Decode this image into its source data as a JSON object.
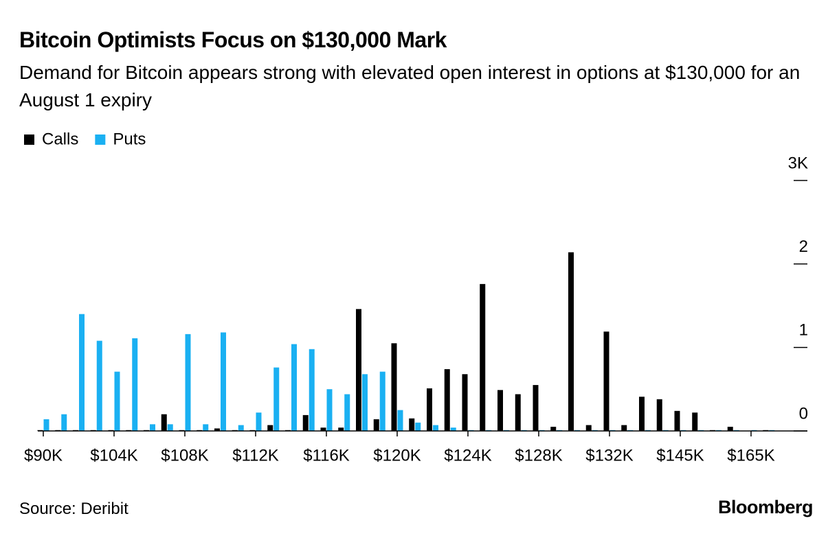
{
  "chart_data": {
    "type": "bar",
    "title": "Bitcoin Optimists Focus on $130,000 Mark",
    "subtitle": "Demand for Bitcoin appears strong with elevated open interest in options at $130,000 for an August 1 expiry",
    "source": "Source: Deribit",
    "brand": "Bloomberg",
    "categories": [
      "$90K",
      null,
      null,
      null,
      "$104K",
      null,
      null,
      null,
      "$108K",
      null,
      null,
      null,
      "$112K",
      null,
      null,
      null,
      "$116K",
      null,
      null,
      null,
      "$120K",
      null,
      null,
      null,
      "$124K",
      null,
      null,
      null,
      "$128K",
      null,
      null,
      null,
      "$132K",
      null,
      null,
      null,
      "$145K",
      null,
      null,
      null,
      "$165K",
      null
    ],
    "series": [
      {
        "name": "Calls",
        "color": "#000000",
        "values": [
          0.01,
          0.01,
          0.01,
          0.01,
          0.01,
          0.01,
          0.01,
          0.2,
          0.01,
          0.01,
          0.03,
          0.01,
          0.01,
          0.07,
          0.01,
          0.19,
          0.04,
          0.04,
          1.46,
          0.14,
          1.05,
          0.15,
          0.51,
          0.74,
          0.68,
          1.76,
          0.49,
          0.44,
          0.55,
          0.05,
          2.14,
          0.07,
          1.19,
          0.07,
          0.41,
          0.38,
          0.24,
          0.22,
          0.01,
          0.05,
          0,
          0.01
        ]
      },
      {
        "name": "Puts",
        "color": "#1ab0f2",
        "values": [
          0.14,
          0.2,
          1.4,
          1.08,
          0.71,
          1.11,
          0.08,
          0.08,
          1.16,
          0.08,
          1.18,
          0.07,
          0.22,
          0.76,
          1.04,
          0.98,
          0.5,
          0.44,
          0.68,
          0.71,
          0.25,
          0.1,
          0.07,
          0.04,
          0.01,
          0.01,
          0.01,
          0.01,
          0.01,
          0.01,
          0.01,
          0.01,
          0.01,
          0.01,
          0.01,
          0.01,
          0.01,
          0.01,
          0.01,
          0.01,
          0.01,
          0.01
        ]
      }
    ],
    "ylim": [
      0,
      3
    ],
    "yticks": [
      0,
      1,
      2,
      {
        "value": 3,
        "label": "3K"
      }
    ]
  }
}
